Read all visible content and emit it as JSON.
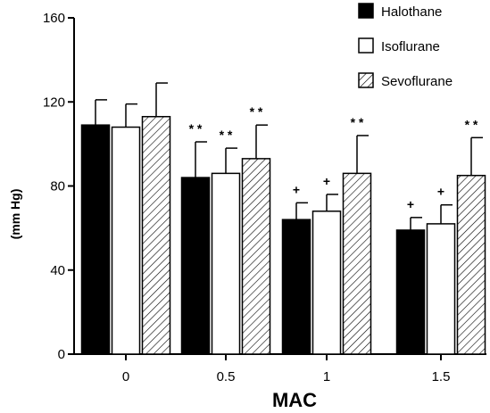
{
  "chart_data": {
    "type": "bar",
    "xlabel": "MAC",
    "ylabel": "(mm Hg)",
    "ylim": [
      0,
      160
    ],
    "yticks": [
      "0",
      "40",
      "80",
      "120",
      "160"
    ],
    "categories": [
      "0",
      "0.5",
      "1",
      "1.5"
    ],
    "legend_position": "top-right",
    "grid": false,
    "series": [
      {
        "name": "Halothane",
        "fill": "solid-black",
        "values": [
          109,
          84,
          64,
          59
        ],
        "error_plus": [
          12,
          17,
          8,
          6
        ],
        "annotations": [
          "",
          "**",
          "+",
          "+"
        ]
      },
      {
        "name": "Isoflurane",
        "fill": "white",
        "values": [
          108,
          86,
          68,
          62
        ],
        "error_plus": [
          11,
          12,
          8,
          9
        ],
        "annotations": [
          "",
          "**",
          "+",
          "+"
        ]
      },
      {
        "name": "Sevoflurane",
        "fill": "diagonal-hatch",
        "values": [
          113,
          93,
          86,
          85
        ],
        "error_plus": [
          16,
          16,
          18,
          18
        ],
        "annotations": [
          "",
          "**",
          "**",
          "**"
        ]
      }
    ]
  }
}
